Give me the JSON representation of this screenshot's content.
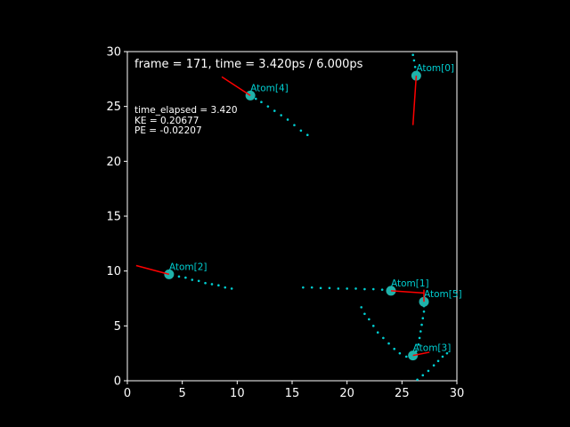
{
  "chart_data": {
    "type": "scatter",
    "title": "frame = 171, time = 3.420ps / 6.000ps",
    "info_lines": [
      "time_elapsed = 3.420",
      "KE = 0.20677",
      "PE = -0.02207"
    ],
    "xlim": [
      0,
      30
    ],
    "ylim": [
      0,
      30
    ],
    "xticks": [
      "0",
      "5",
      "10",
      "15",
      "20",
      "25",
      "30"
    ],
    "yticks": [
      "0",
      "5",
      "10",
      "15",
      "20",
      "25",
      "30"
    ],
    "grid": false,
    "atom_color": "#20b2aa",
    "label_color": "#00ced1",
    "trail_color": "#00ced1",
    "vector_color": "#ff0000",
    "background": "#000000",
    "atoms": [
      {
        "name": "Atom[0]",
        "position": [
          26.3,
          27.8
        ],
        "vector_end": [
          26.0,
          23.3
        ],
        "trail": [
          [
            26.0,
            29.7
          ],
          [
            26.1,
            29.2
          ],
          [
            26.2,
            28.6
          ]
        ]
      },
      {
        "name": "Atom[1]",
        "position": [
          24.0,
          8.2
        ],
        "vector_end": [
          27.0,
          8.0
        ],
        "trail": [
          [
            16.0,
            8.5
          ],
          [
            16.8,
            8.5
          ],
          [
            17.6,
            8.45
          ],
          [
            18.4,
            8.45
          ],
          [
            19.2,
            8.4
          ],
          [
            20.0,
            8.4
          ],
          [
            20.8,
            8.4
          ],
          [
            21.6,
            8.35
          ],
          [
            22.4,
            8.35
          ],
          [
            23.2,
            8.3
          ]
        ]
      },
      {
        "name": "Atom[2]",
        "position": [
          3.8,
          9.7
        ],
        "vector_end": [
          0.8,
          10.5
        ],
        "trail": [
          [
            9.5,
            8.4
          ],
          [
            8.9,
            8.5
          ],
          [
            8.3,
            8.7
          ],
          [
            7.7,
            8.8
          ],
          [
            7.1,
            8.9
          ],
          [
            6.5,
            9.1
          ],
          [
            5.9,
            9.2
          ],
          [
            5.3,
            9.4
          ],
          [
            4.7,
            9.5
          ]
        ]
      },
      {
        "name": "Atom[3]",
        "position": [
          26.0,
          2.3
        ],
        "vector_end": [
          27.5,
          2.6
        ],
        "trail": [
          [
            21.3,
            6.7
          ],
          [
            21.6,
            6.1
          ],
          [
            22.0,
            5.6
          ],
          [
            22.4,
            5.0
          ],
          [
            22.8,
            4.4
          ],
          [
            23.3,
            3.9
          ],
          [
            23.8,
            3.4
          ],
          [
            24.3,
            2.9
          ],
          [
            24.8,
            2.5
          ],
          [
            25.4,
            2.2
          ]
        ]
      },
      {
        "name": "Atom[4]",
        "position": [
          11.2,
          26.0
        ],
        "vector_end": [
          8.6,
          27.7
        ],
        "trail": [
          [
            16.4,
            22.4
          ],
          [
            15.8,
            22.8
          ],
          [
            15.2,
            23.3
          ],
          [
            14.6,
            23.8
          ],
          [
            14.0,
            24.2
          ],
          [
            13.4,
            24.6
          ],
          [
            12.8,
            25.0
          ],
          [
            12.2,
            25.4
          ],
          [
            11.7,
            25.7
          ]
        ]
      },
      {
        "name": "Atom[5]",
        "position": [
          27.0,
          7.2
        ],
        "vector_end": [
          27.0,
          8.3
        ],
        "trail": [
          [
            26.4,
            0.1
          ],
          [
            26.9,
            0.5
          ],
          [
            27.4,
            0.9
          ],
          [
            27.9,
            1.4
          ],
          [
            28.3,
            1.8
          ],
          [
            28.7,
            2.2
          ],
          [
            29.1,
            2.5
          ],
          [
            26.3,
            2.7
          ],
          [
            26.5,
            3.3
          ],
          [
            26.6,
            3.9
          ],
          [
            26.7,
            4.5
          ],
          [
            26.8,
            5.1
          ],
          [
            26.9,
            5.7
          ],
          [
            27.0,
            6.3
          ],
          [
            27.0,
            6.8
          ]
        ]
      }
    ]
  }
}
